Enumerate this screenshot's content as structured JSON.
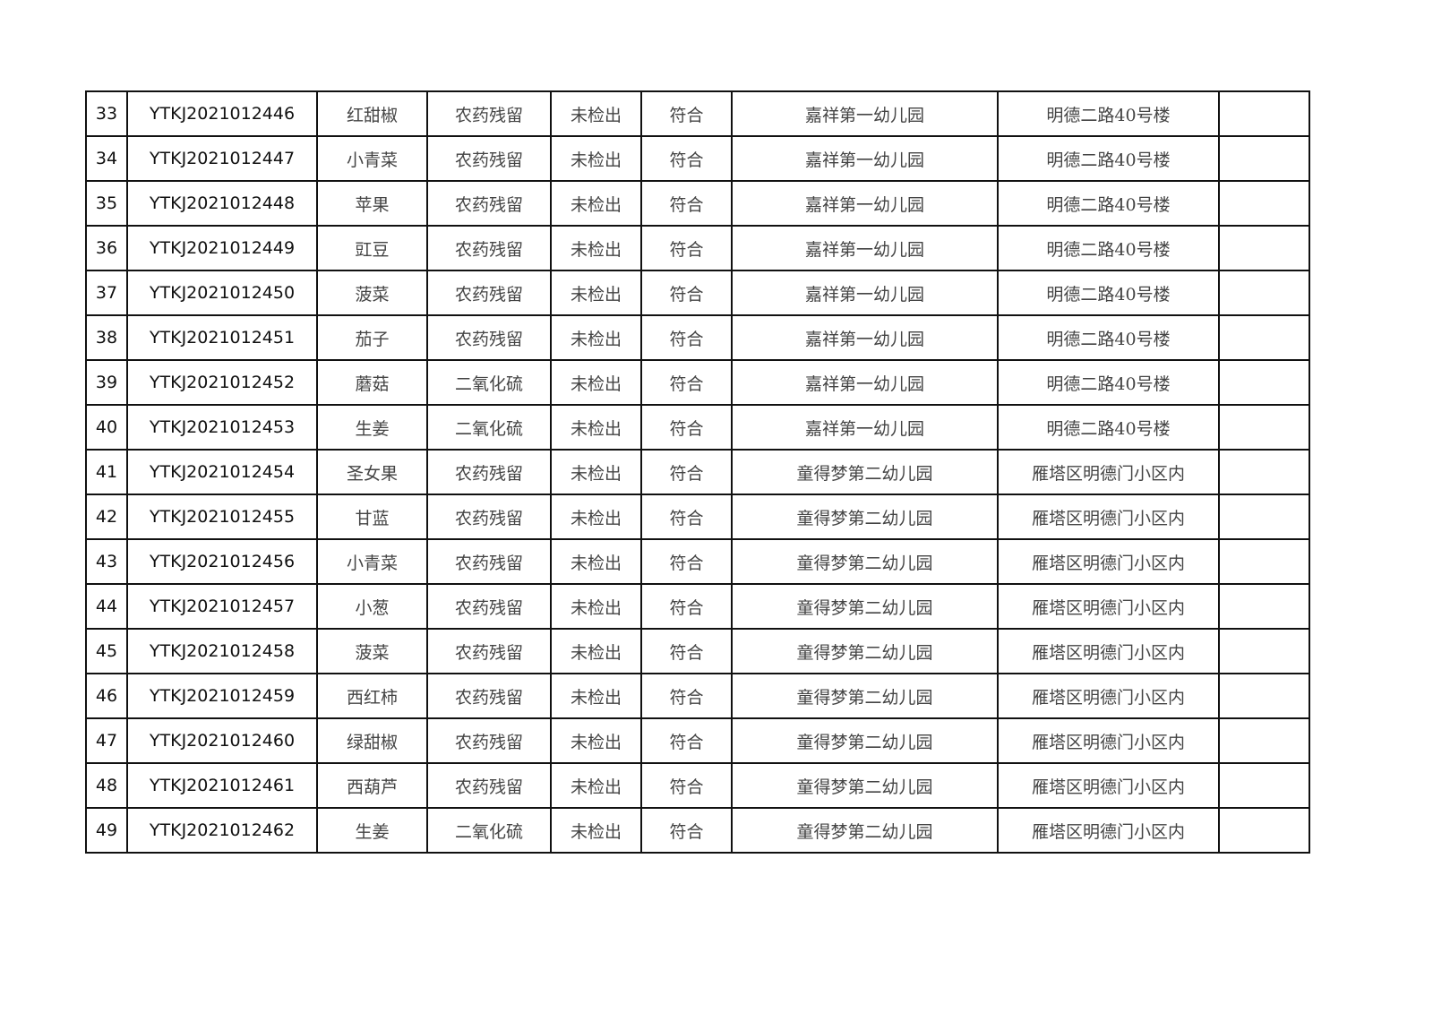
{
  "table": {
    "rows": [
      [
        "33",
        "YTKJ2021012446",
        "红甜椒",
        "农药残留",
        "未检出",
        "符合",
        "嘉祥第一幼儿园",
        "明德二路40号楼",
        ""
      ],
      [
        "34",
        "YTKJ2021012447",
        "小青菜",
        "农药残留",
        "未检出",
        "符合",
        "嘉祥第一幼儿园",
        "明德二路40号楼",
        ""
      ],
      [
        "35",
        "YTKJ2021012448",
        "苹果",
        "农药残留",
        "未检出",
        "符合",
        "嘉祥第一幼儿园",
        "明德二路40号楼",
        ""
      ],
      [
        "36",
        "YTKJ2021012449",
        "豇豆",
        "农药残留",
        "未检出",
        "符合",
        "嘉祥第一幼儿园",
        "明德二路40号楼",
        ""
      ],
      [
        "37",
        "YTKJ2021012450",
        "菠菜",
        "农药残留",
        "未检出",
        "符合",
        "嘉祥第一幼儿园",
        "明德二路40号楼",
        ""
      ],
      [
        "38",
        "YTKJ2021012451",
        "茄子",
        "农药残留",
        "未检出",
        "符合",
        "嘉祥第一幼儿园",
        "明德二路40号楼",
        ""
      ],
      [
        "39",
        "YTKJ2021012452",
        "蘑菇",
        "二氧化硫",
        "未检出",
        "符合",
        "嘉祥第一幼儿园",
        "明德二路40号楼",
        ""
      ],
      [
        "40",
        "YTKJ2021012453",
        "生姜",
        "二氧化硫",
        "未检出",
        "符合",
        "嘉祥第一幼儿园",
        "明德二路40号楼",
        ""
      ],
      [
        "41",
        "YTKJ2021012454",
        "圣女果",
        "农药残留",
        "未检出",
        "符合",
        "童得梦第二幼儿园",
        "雁塔区明德门小区内",
        ""
      ],
      [
        "42",
        "YTKJ2021012455",
        "甘蓝",
        "农药残留",
        "未检出",
        "符合",
        "童得梦第二幼儿园",
        "雁塔区明德门小区内",
        ""
      ],
      [
        "43",
        "YTKJ2021012456",
        "小青菜",
        "农药残留",
        "未检出",
        "符合",
        "童得梦第二幼儿园",
        "雁塔区明德门小区内",
        ""
      ],
      [
        "44",
        "YTKJ2021012457",
        "小葱",
        "农药残留",
        "未检出",
        "符合",
        "童得梦第二幼儿园",
        "雁塔区明德门小区内",
        ""
      ],
      [
        "45",
        "YTKJ2021012458",
        "菠菜",
        "农药残留",
        "未检出",
        "符合",
        "童得梦第二幼儿园",
        "雁塔区明德门小区内",
        ""
      ],
      [
        "46",
        "YTKJ2021012459",
        "西红柿",
        "农药残留",
        "未检出",
        "符合",
        "童得梦第二幼儿园",
        "雁塔区明德门小区内",
        ""
      ],
      [
        "47",
        "YTKJ2021012460",
        "绿甜椒",
        "农药残留",
        "未检出",
        "符合",
        "童得梦第二幼儿园",
        "雁塔区明德门小区内",
        ""
      ],
      [
        "48",
        "YTKJ2021012461",
        "西葫芦",
        "农药残留",
        "未检出",
        "符合",
        "童得梦第二幼儿园",
        "雁塔区明德门小区内",
        ""
      ],
      [
        "49",
        "YTKJ2021012462",
        "生姜",
        "二氧化硫",
        "未检出",
        "符合",
        "童得梦第二幼儿园",
        "雁塔区明德门小区内",
        ""
      ]
    ]
  }
}
